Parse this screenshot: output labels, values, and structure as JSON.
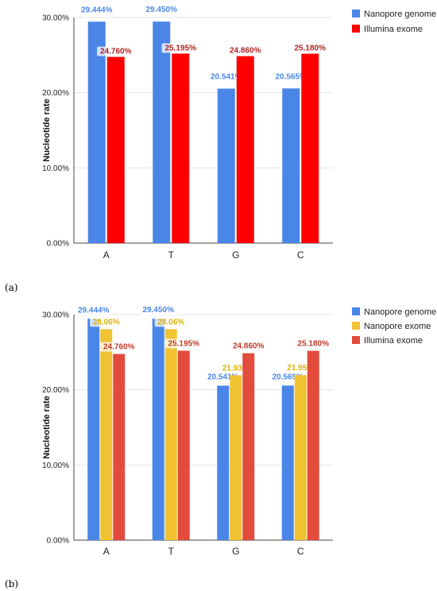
{
  "chart_data": [
    {
      "type": "bar",
      "panel_label": "(a)",
      "categories": [
        "A",
        "T",
        "G",
        "C"
      ],
      "ylabel": "Nucleotide rate",
      "ylim": [
        0,
        30
      ],
      "yticks": [
        "0.00%",
        "10.00%",
        "20.00%",
        "30.00%"
      ],
      "legend_position": "top-right",
      "series": [
        {
          "name": "Nanopore genome",
          "color": "#4a86e8",
          "label_color": "#4a86e8",
          "values": [
            29.444,
            29.45,
            20.541,
            20.565
          ],
          "labels": [
            "29.444%",
            "29.450%",
            "20.541%",
            "20.565%"
          ]
        },
        {
          "name": "Illumina exome",
          "color": "#ff0000",
          "label_color": "#b22222",
          "values": [
            24.76,
            25.195,
            24.86,
            25.18
          ],
          "labels": [
            "24.760%",
            "25.195%",
            "24.860%",
            "25.180%"
          ]
        }
      ]
    },
    {
      "type": "bar",
      "panel_label": "(b)",
      "categories": [
        "A",
        "T",
        "G",
        "C"
      ],
      "ylabel": "Nucleotide rate",
      "ylim": [
        0,
        30
      ],
      "yticks": [
        "0.00%",
        "10.00%",
        "20.00%",
        "30.00%"
      ],
      "legend_position": "top-right",
      "series": [
        {
          "name": "Nanopore genome",
          "color": "#4a86e8",
          "label_color": "#4a86e8",
          "values": [
            29.444,
            29.45,
            20.541,
            20.565
          ],
          "labels": [
            "29.444%",
            "29.450%",
            "20.541%",
            "20.565%"
          ]
        },
        {
          "name": "Nanopore exome",
          "color": "#f1c232",
          "label_color": "#e0b000",
          "values": [
            28.06,
            28.06,
            21.93,
            21.95
          ],
          "labels": [
            "28.06%",
            "28.06%",
            "21.93%",
            "21.95%"
          ]
        },
        {
          "name": "Illumina exome",
          "color": "#e34b3c",
          "label_color": "#c0392b",
          "values": [
            24.76,
            25.195,
            24.86,
            25.18
          ],
          "labels": [
            "24.760%",
            "25.195%",
            "24.860%",
            "25.180%"
          ]
        }
      ]
    }
  ]
}
